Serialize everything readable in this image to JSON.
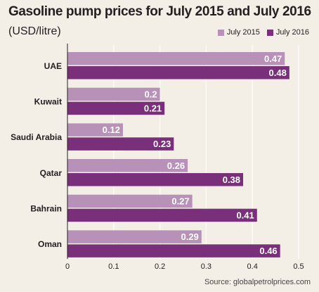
{
  "title": "Gasoline pump prices for July 2015 and July 2016",
  "subtitle": "(USD/litre)",
  "source": "Source: globalpetrolprices.com",
  "colors": {
    "background": "#f3eee6",
    "series_2015": "#b891b8",
    "series_2016": "#7a2f7a"
  },
  "chart_data": {
    "type": "bar",
    "orientation": "horizontal",
    "categories": [
      "UAE",
      "Kuwait",
      "Saudi Arabia",
      "Qatar",
      "Bahrain",
      "Oman"
    ],
    "series": [
      {
        "name": "July 2015",
        "values": [
          0.47,
          0.2,
          0.12,
          0.26,
          0.27,
          0.29
        ],
        "labels": [
          "0.47",
          "0.2",
          "0.12",
          "0.26",
          "0.27",
          "0.29"
        ]
      },
      {
        "name": "July 2016",
        "values": [
          0.48,
          0.21,
          0.23,
          0.38,
          0.41,
          0.46
        ],
        "labels": [
          "0.48",
          "0.21",
          "0.23",
          "0.38",
          "0.41",
          "0.46"
        ]
      }
    ],
    "xlim": [
      0,
      0.5
    ],
    "xticks": [
      "0",
      "0.1",
      "0.2",
      "0.3",
      "0.4",
      "0.5"
    ],
    "grid": "vertical",
    "legend": "top-right"
  }
}
